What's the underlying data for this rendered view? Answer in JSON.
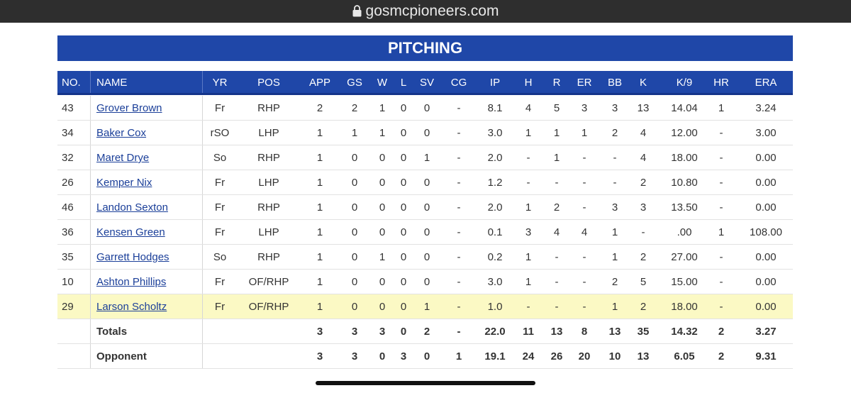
{
  "url": "gosmcpioneers.com",
  "title": "PITCHING",
  "table": {
    "headers": [
      "NO.",
      "NAME",
      "YR",
      "POS",
      "APP",
      "GS",
      "W",
      "L",
      "SV",
      "CG",
      "IP",
      "H",
      "R",
      "ER",
      "BB",
      "K",
      "K/9",
      "HR",
      "ERA"
    ],
    "rows": [
      {
        "no": "43",
        "name": "Grover Brown",
        "yr": "Fr",
        "pos": "RHP",
        "stats": [
          "2",
          "2",
          "1",
          "0",
          "0",
          "-",
          "8.1",
          "4",
          "5",
          "3",
          "3",
          "13",
          "14.04",
          "1",
          "3.24"
        ]
      },
      {
        "no": "34",
        "name": "Baker Cox",
        "yr": "rSO",
        "pos": "LHP",
        "stats": [
          "1",
          "1",
          "1",
          "0",
          "0",
          "-",
          "3.0",
          "1",
          "1",
          "1",
          "2",
          "4",
          "12.00",
          "-",
          "3.00"
        ]
      },
      {
        "no": "32",
        "name": "Maret Drye",
        "yr": "So",
        "pos": "RHP",
        "stats": [
          "1",
          "0",
          "0",
          "0",
          "1",
          "-",
          "2.0",
          "-",
          "1",
          "-",
          "-",
          "4",
          "18.00",
          "-",
          "0.00"
        ]
      },
      {
        "no": "26",
        "name": "Kemper Nix",
        "yr": "Fr",
        "pos": "LHP",
        "stats": [
          "1",
          "0",
          "0",
          "0",
          "0",
          "-",
          "1.2",
          "-",
          "-",
          "-",
          "-",
          "2",
          "10.80",
          "-",
          "0.00"
        ]
      },
      {
        "no": "46",
        "name": "Landon Sexton",
        "yr": "Fr",
        "pos": "RHP",
        "stats": [
          "1",
          "0",
          "0",
          "0",
          "0",
          "-",
          "2.0",
          "1",
          "2",
          "-",
          "3",
          "3",
          "13.50",
          "-",
          "0.00"
        ]
      },
      {
        "no": "36",
        "name": "Kensen Green",
        "yr": "Fr",
        "pos": "LHP",
        "stats": [
          "1",
          "0",
          "0",
          "0",
          "0",
          "-",
          "0.1",
          "3",
          "4",
          "4",
          "1",
          "-",
          ".00",
          "1",
          "108.00"
        ]
      },
      {
        "no": "35",
        "name": "Garrett Hodges",
        "yr": "So",
        "pos": "RHP",
        "stats": [
          "1",
          "0",
          "1",
          "0",
          "0",
          "-",
          "0.2",
          "1",
          "-",
          "-",
          "1",
          "2",
          "27.00",
          "-",
          "0.00"
        ]
      },
      {
        "no": "10",
        "name": "Ashton Phillips",
        "yr": "Fr",
        "pos": "OF/RHP",
        "stats": [
          "1",
          "0",
          "0",
          "0",
          "0",
          "-",
          "3.0",
          "1",
          "-",
          "-",
          "2",
          "5",
          "15.00",
          "-",
          "0.00"
        ]
      },
      {
        "no": "29",
        "name": "Larson Scholtz",
        "yr": "Fr",
        "pos": "OF/RHP",
        "stats": [
          "1",
          "0",
          "0",
          "0",
          "1",
          "-",
          "1.0",
          "-",
          "-",
          "-",
          "1",
          "2",
          "18.00",
          "-",
          "0.00"
        ]
      }
    ],
    "totals": [
      {
        "label": "Totals",
        "stats": [
          "3",
          "3",
          "3",
          "0",
          "2",
          "-",
          "22.0",
          "11",
          "13",
          "8",
          "13",
          "35",
          "14.32",
          "2",
          "3.27"
        ]
      },
      {
        "label": "Opponent",
        "stats": [
          "3",
          "3",
          "0",
          "3",
          "0",
          "1",
          "19.1",
          "24",
          "26",
          "20",
          "10",
          "13",
          "6.05",
          "2",
          "9.31"
        ]
      }
    ]
  }
}
